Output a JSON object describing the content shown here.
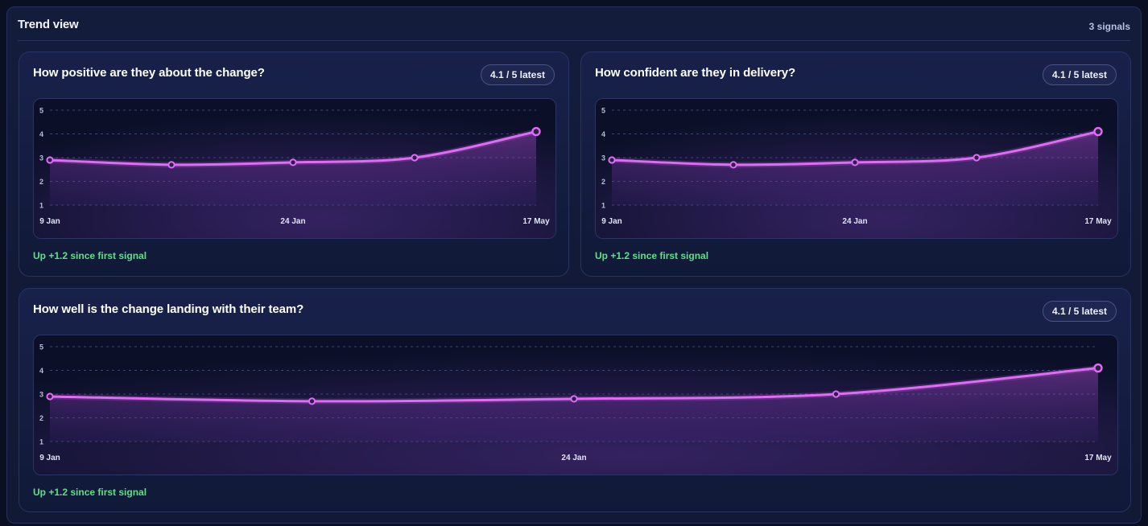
{
  "panel": {
    "title": "Trend view",
    "count": "3 signals"
  },
  "cards": [
    {
      "title": "How positive are they about the change?",
      "badge": "4.1 / 5 latest",
      "footer": "Up +1.2 since first signal"
    },
    {
      "title": "How confident are they in delivery?",
      "badge": "4.1 / 5 latest",
      "footer": "Up +1.2 since first signal"
    },
    {
      "title": "How well is the change landing with their team?",
      "badge": "4.1 / 5 latest",
      "footer": "Up +1.2 since first signal"
    }
  ],
  "colors": {
    "line": "#e06cf5",
    "up": "#5ee08a",
    "point_fill": "#2a1f4a"
  },
  "chart_data": [
    {
      "type": "line",
      "title": "How positive are they about the change?",
      "x_tick_labels": [
        "9 Jan",
        "24 Jan",
        "17 May"
      ],
      "y_ticks": [
        1,
        2,
        3,
        4,
        5
      ],
      "ylim": [
        1,
        5
      ],
      "grid": true,
      "series": [
        {
          "values": [
            2.9,
            2.7,
            2.8,
            3.0,
            4.1
          ]
        }
      ]
    },
    {
      "type": "line",
      "title": "How confident are they in delivery?",
      "x_tick_labels": [
        "9 Jan",
        "24 Jan",
        "17 May"
      ],
      "y_ticks": [
        1,
        2,
        3,
        4,
        5
      ],
      "ylim": [
        1,
        5
      ],
      "grid": true,
      "series": [
        {
          "values": [
            2.9,
            2.7,
            2.8,
            3.0,
            4.1
          ]
        }
      ]
    },
    {
      "type": "line",
      "title": "How well is the change landing with their team?",
      "x_tick_labels": [
        "9 Jan",
        "24 Jan",
        "17 May"
      ],
      "y_ticks": [
        1,
        2,
        3,
        4,
        5
      ],
      "ylim": [
        1,
        5
      ],
      "grid": true,
      "series": [
        {
          "values": [
            2.9,
            2.7,
            2.8,
            3.0,
            4.1
          ]
        }
      ]
    }
  ]
}
